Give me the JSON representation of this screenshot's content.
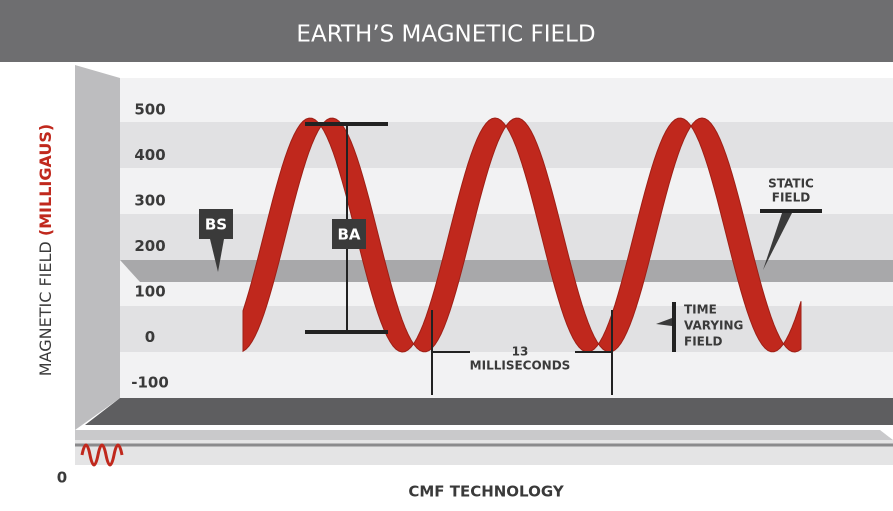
{
  "chart_data": {
    "type": "line",
    "title": "EARTH’S MAGNETIC FIELD",
    "y_label": "MAGNETIC FIELD",
    "y_label_unit": "(MILLIGAUS)",
    "x_label": "CMF TECHNOLOGY",
    "origin_label": "0",
    "ylim": [
      -100,
      500
    ],
    "yticks": [
      500,
      400,
      300,
      200,
      100,
      0,
      -100
    ],
    "annotations": {
      "bs": "BS",
      "ba": "BA",
      "static_field": [
        "STATIC",
        "FIELD"
      ],
      "period": [
        "13",
        "MILLISECONDS"
      ],
      "time_varying_field": [
        "TIME",
        "VARYING",
        "FIELD"
      ]
    },
    "color": "#c0281d"
  }
}
